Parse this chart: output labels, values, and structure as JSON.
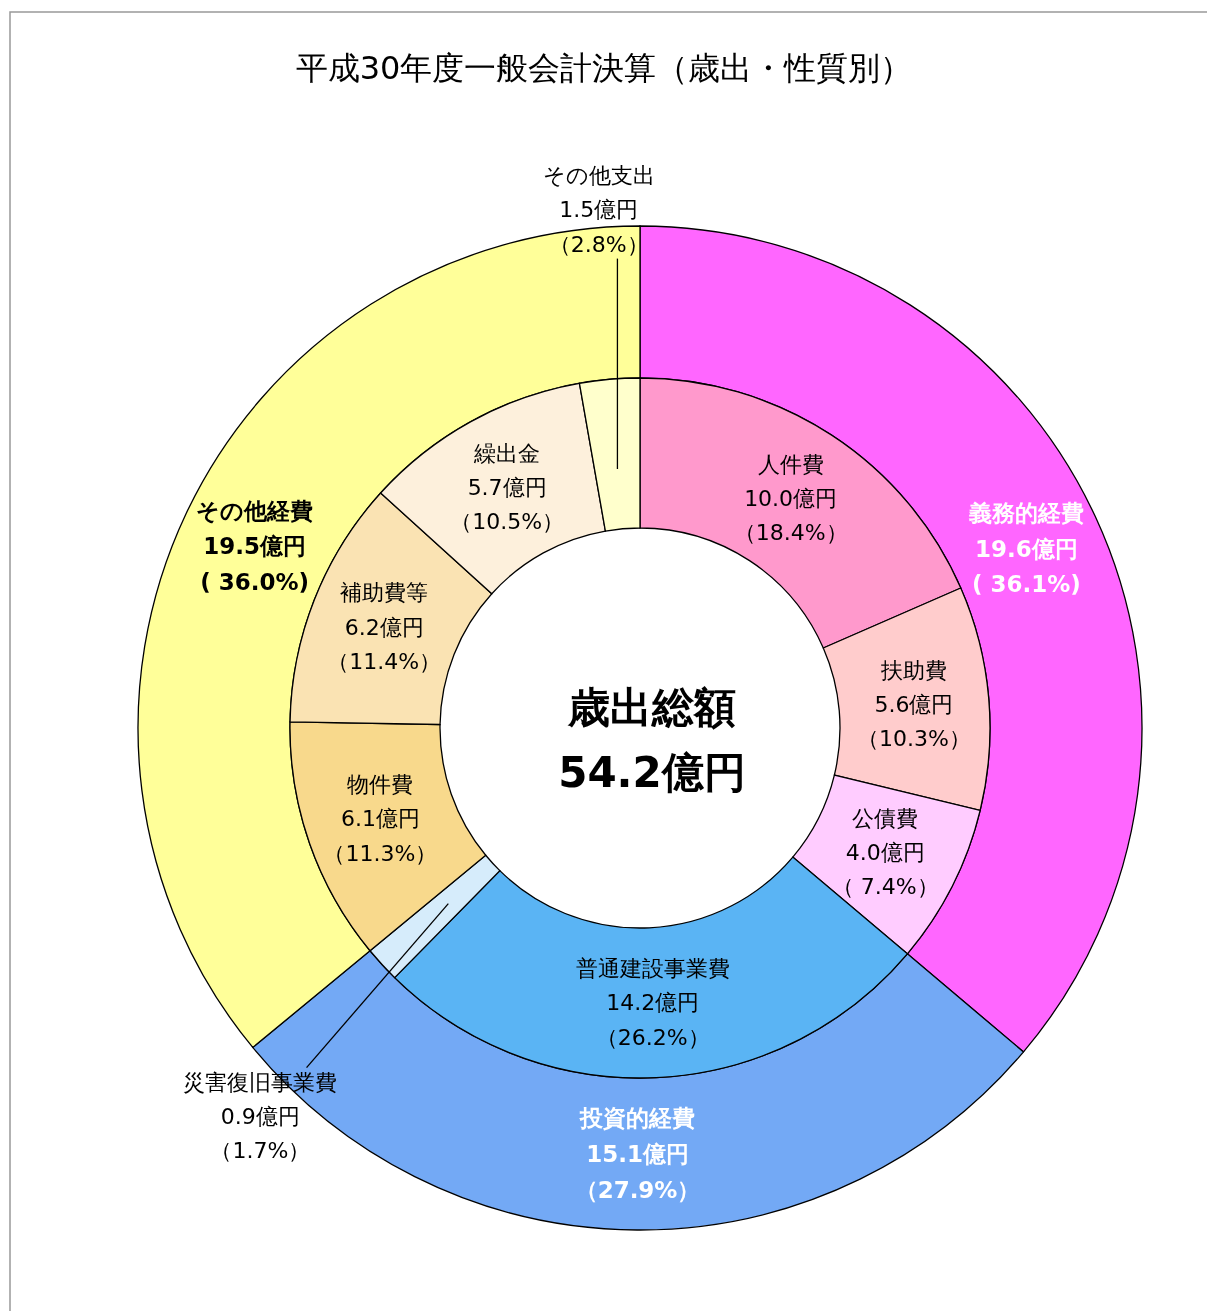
{
  "chart_data": [
    {
      "type": "donut",
      "title": "平成30年度一般会計決算（歳出・性質別）",
      "categories": [
        "義務的経費",
        "投資的経費",
        "その他経費"
      ],
      "values": [
        19.6,
        15.1,
        19.5
      ],
      "colors": [
        "#ff66ff",
        "#73a9f5",
        "#ffff99"
      ],
      "value_labels": [
        "19.6億円( 36.1%)",
        "15.1億円（27.9%）",
        "19.5億円( 36.0%)"
      ],
      "annotations": [
        "歳出総額",
        "54.2億円"
      ]
    },
    {
      "type": "donut",
      "categories": [
        "人件費",
        "扶助費",
        "公債費",
        "普通建設事業費",
        "災害復旧事業費",
        "物件費",
        "補助費等",
        "繰出金",
        "その他支出"
      ],
      "values": [
        10.0,
        5.6,
        4.0,
        14.2,
        0.9,
        6.1,
        6.2,
        5.7,
        1.5
      ],
      "colors": [
        "#ff99cc",
        "#ffcccc",
        "#ffccff",
        "#5ab4f4",
        "#d6ecfb",
        "#f8d98c",
        "#fae3b3",
        "#fdf0dc",
        "#ffffcc"
      ],
      "value_labels": [
        "10.0億円（18.4%）",
        "5.6億円（10.3%）",
        "4.0億円（ 7.4%）",
        "14.2億円（26.2%）",
        "0.9億円（1.7%）",
        "6.1億円（11.3%）",
        "6.2億円（11.4%）",
        "5.7億円（10.5%）",
        "1.5億円（2.8%）"
      ]
    }
  ]
}
